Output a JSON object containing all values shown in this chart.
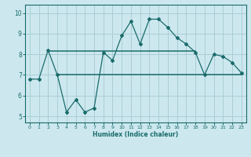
{
  "title": "",
  "xlabel": "Humidex (Indice chaleur)",
  "ylabel": "",
  "bg_color": "#cce8ee",
  "grid_color": "#aacdd6",
  "line_color": "#1a6b6b",
  "xlim": [
    -0.5,
    23.5
  ],
  "ylim": [
    4.7,
    10.4
  ],
  "xticks": [
    0,
    1,
    2,
    3,
    4,
    5,
    6,
    7,
    8,
    9,
    10,
    11,
    12,
    13,
    14,
    15,
    16,
    17,
    18,
    19,
    20,
    21,
    22,
    23
  ],
  "yticks": [
    5,
    6,
    7,
    8,
    9,
    10
  ],
  "humidex_x": [
    0,
    1,
    2,
    3,
    4,
    5,
    6,
    7,
    8,
    9,
    10,
    11,
    12,
    13,
    14,
    15,
    16,
    17,
    18,
    19,
    20,
    21,
    22,
    23
  ],
  "humidex_y": [
    6.8,
    6.8,
    8.2,
    7.0,
    5.2,
    5.8,
    5.2,
    5.4,
    8.1,
    7.7,
    8.9,
    9.6,
    8.5,
    9.7,
    9.7,
    9.3,
    8.8,
    8.5,
    8.1,
    7.0,
    8.0,
    7.9,
    7.6,
    7.1
  ],
  "hline1_x": [
    2,
    18
  ],
  "hline1_y": [
    8.15,
    8.15
  ],
  "hline2_x": [
    3,
    23
  ],
  "hline2_y": [
    7.0,
    7.0
  ]
}
